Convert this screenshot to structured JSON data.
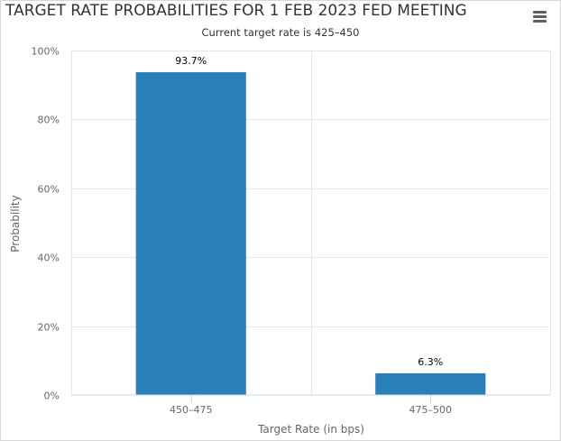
{
  "chart_data": {
    "type": "bar",
    "title": "TARGET RATE PROBABILITIES FOR 1 FEB 2023 FED MEETING",
    "subtitle": "Current target rate is 425–450",
    "xlabel": "Target Rate (in bps)",
    "ylabel": "Probability",
    "categories": [
      "450–475",
      "475–500"
    ],
    "values": [
      93.7,
      6.3
    ],
    "data_labels": [
      "93.7%",
      "6.3%"
    ],
    "ylim": [
      0,
      100
    ],
    "yticks": [
      0,
      20,
      40,
      60,
      80,
      100
    ],
    "ytick_labels": [
      "0%",
      "20%",
      "40%",
      "60%",
      "80%",
      "100%"
    ],
    "grid": true,
    "bar_color": "#2980b9"
  },
  "menu": {
    "icon": "hamburger-menu-icon"
  }
}
